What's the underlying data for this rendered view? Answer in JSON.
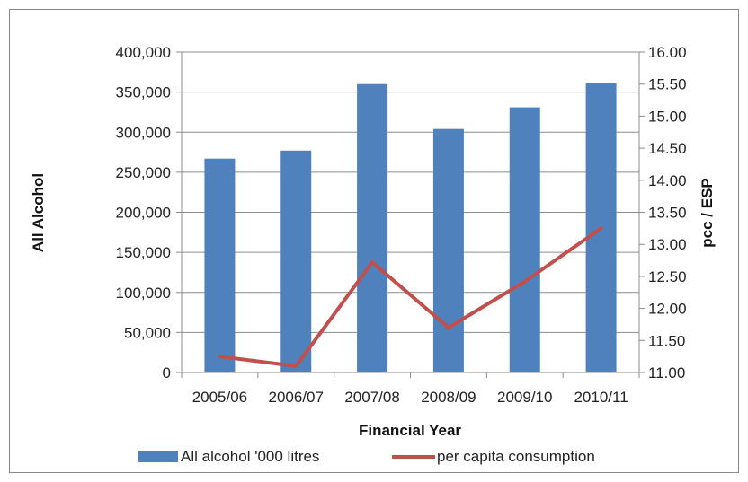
{
  "chart_data": {
    "type": "bar",
    "categories": [
      "2005/06",
      "2006/07",
      "2007/08",
      "2008/09",
      "2009/10",
      "2010/11"
    ],
    "series": [
      {
        "name": "All alcohol '000 litres",
        "type": "bar",
        "axis": "left",
        "color": "#4f81bd",
        "values": [
          267000,
          277000,
          360000,
          304000,
          331000,
          361000
        ]
      },
      {
        "name": "per capita consumption",
        "type": "line",
        "axis": "right",
        "color": "#c0504d",
        "values": [
          11.25,
          11.1,
          12.72,
          11.7,
          12.42,
          13.25
        ]
      }
    ],
    "xlabel": "Financial Year",
    "ylabel": "All Alcohol",
    "y2label": "pcc / ESP",
    "ylim": [
      0,
      400000
    ],
    "y2lim": [
      11.0,
      16.0
    ],
    "yticks": [
      "0",
      "50,000",
      "100,000",
      "150,000",
      "200,000",
      "250,000",
      "300,000",
      "350,000",
      "400,000"
    ],
    "y2ticks": [
      "11.00",
      "11.50",
      "12.00",
      "12.50",
      "13.00",
      "13.50",
      "14.00",
      "14.50",
      "15.00",
      "15.50",
      "16.00"
    ],
    "grid": true,
    "legend_position": "bottom"
  }
}
